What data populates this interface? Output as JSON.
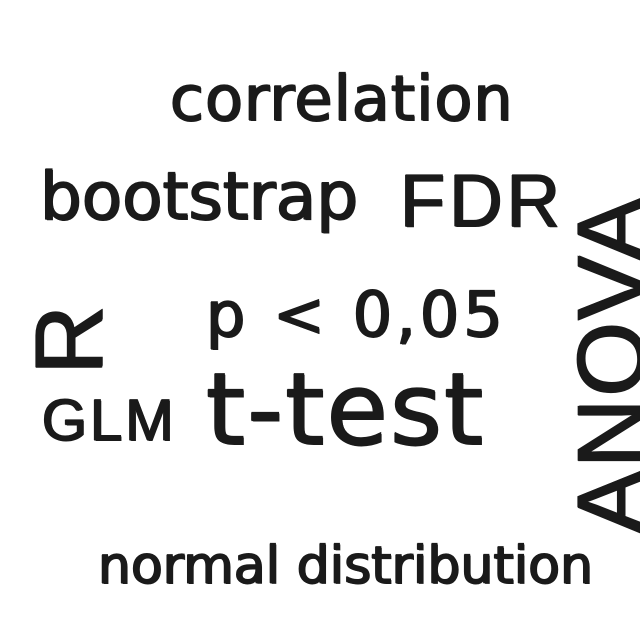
{
  "words": {
    "correlation": "correlation",
    "bootstrap": "bootstrap",
    "fdr": "FDR",
    "r": "R",
    "p_value": "p < 0,05",
    "glm": "GLM",
    "ttest": "t-test",
    "anova": "ANOVA",
    "normal_distribution": "normal distribution"
  },
  "colors": {
    "ink": "#1a1a1a",
    "background": "#ffffff"
  }
}
